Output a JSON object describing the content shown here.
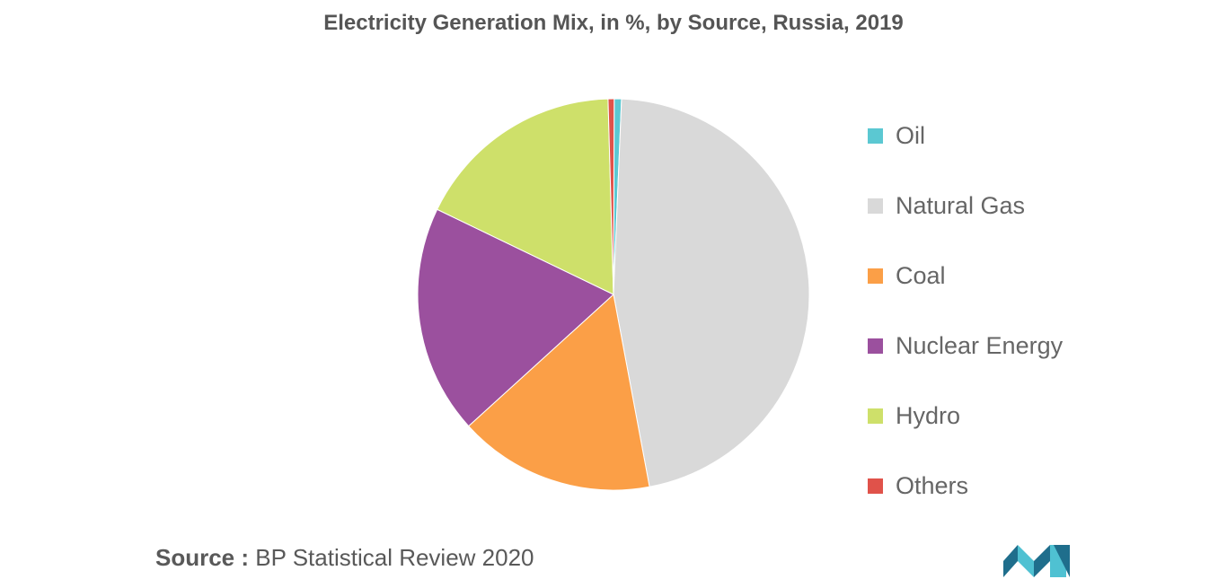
{
  "chart_data": {
    "type": "pie",
    "title": "Electricity Generation Mix, in %, by Source, Russia, 2019",
    "categories": [
      "Oil",
      "Natural Gas",
      "Coal",
      "Nuclear Energy",
      "Hydro",
      "Others"
    ],
    "values": [
      0.6,
      46.4,
      16.2,
      18.9,
      17.4,
      0.5
    ],
    "colors": [
      "#5BC8D2",
      "#D9D9D9",
      "#FB9F47",
      "#9B509E",
      "#CEE06A",
      "#E0524A"
    ],
    "legend_position": "right"
  },
  "source": {
    "label": "Source :",
    "text": "BP Statistical Review 2020"
  },
  "logo": {
    "icon": "mordor-intelligence-logo",
    "colors": [
      "#1F6E8C",
      "#4FC1D2"
    ]
  }
}
